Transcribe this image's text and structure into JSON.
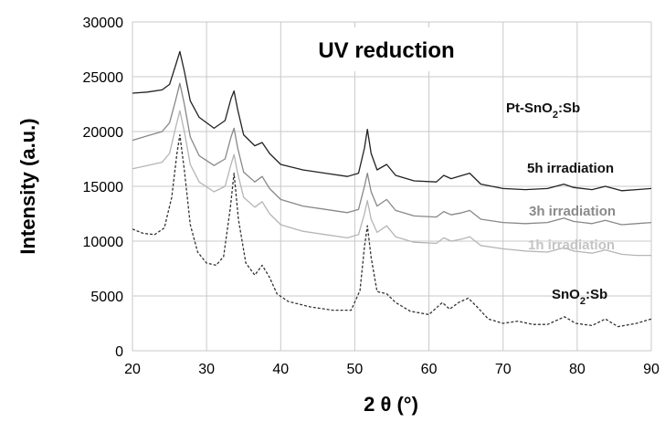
{
  "chart_data": {
    "type": "line",
    "title": "UV reduction",
    "xlabel": "2 θ (°)",
    "ylabel": "Intensity (a.u.)",
    "xlim": [
      20,
      90
    ],
    "ylim": [
      0,
      30000
    ],
    "xticks": [
      20,
      30,
      40,
      50,
      60,
      70,
      80,
      90
    ],
    "yticks": [
      0,
      5000,
      10000,
      15000,
      20000,
      25000,
      30000
    ],
    "grid": true,
    "series": [
      {
        "name": "Pt-SnO2:Sb",
        "label_parts": [
          "Pt-SnO",
          "2",
          ":Sb"
        ],
        "color": "#222222",
        "dash": "solid",
        "points": [
          [
            20,
            23500
          ],
          [
            22,
            23600
          ],
          [
            24,
            23800
          ],
          [
            25,
            24300
          ],
          [
            25.8,
            26000
          ],
          [
            26.4,
            27300
          ],
          [
            27,
            25500
          ],
          [
            27.8,
            22800
          ],
          [
            29,
            21300
          ],
          [
            31,
            20300
          ],
          [
            32.5,
            21000
          ],
          [
            33.3,
            23000
          ],
          [
            33.7,
            23700
          ],
          [
            34.2,
            22000
          ],
          [
            35,
            19700
          ],
          [
            36.5,
            18700
          ],
          [
            37.5,
            19000
          ],
          [
            38.5,
            18000
          ],
          [
            40,
            17000
          ],
          [
            43,
            16500
          ],
          [
            46,
            16200
          ],
          [
            49,
            15900
          ],
          [
            50.5,
            16200
          ],
          [
            51.3,
            18500
          ],
          [
            51.7,
            20200
          ],
          [
            52.2,
            18000
          ],
          [
            53,
            16500
          ],
          [
            54.3,
            17000
          ],
          [
            55.5,
            16000
          ],
          [
            58,
            15500
          ],
          [
            61,
            15400
          ],
          [
            62,
            16000
          ],
          [
            63,
            15700
          ],
          [
            64.5,
            16000
          ],
          [
            65.5,
            16200
          ],
          [
            67,
            15200
          ],
          [
            70,
            14800
          ],
          [
            73,
            14700
          ],
          [
            76,
            14800
          ],
          [
            78.2,
            15200
          ],
          [
            79.5,
            14900
          ],
          [
            82,
            14700
          ],
          [
            83.8,
            15000
          ],
          [
            86,
            14600
          ],
          [
            88,
            14700
          ],
          [
            90,
            14800
          ]
        ]
      },
      {
        "name": "5h irradiation",
        "label_parts": [
          "5h irradiation"
        ],
        "color": "#888888",
        "dash": "solid",
        "points": [
          [
            20,
            19200
          ],
          [
            22,
            19600
          ],
          [
            24,
            20000
          ],
          [
            25,
            20800
          ],
          [
            25.8,
            22800
          ],
          [
            26.4,
            24400
          ],
          [
            27,
            22500
          ],
          [
            27.8,
            19500
          ],
          [
            29,
            17800
          ],
          [
            31,
            16900
          ],
          [
            32.5,
            17500
          ],
          [
            33.3,
            19500
          ],
          [
            33.7,
            20300
          ],
          [
            34.2,
            18500
          ],
          [
            35,
            16300
          ],
          [
            36.5,
            15400
          ],
          [
            37.5,
            15900
          ],
          [
            38.5,
            14800
          ],
          [
            40,
            13800
          ],
          [
            43,
            13200
          ],
          [
            46,
            12900
          ],
          [
            49,
            12600
          ],
          [
            50.5,
            12900
          ],
          [
            51.3,
            15000
          ],
          [
            51.7,
            16200
          ],
          [
            52.2,
            14500
          ],
          [
            53,
            13200
          ],
          [
            54.3,
            13800
          ],
          [
            55.5,
            12800
          ],
          [
            58,
            12300
          ],
          [
            61,
            12200
          ],
          [
            62,
            12700
          ],
          [
            63,
            12400
          ],
          [
            64.5,
            12600
          ],
          [
            65.5,
            12800
          ],
          [
            67,
            12000
          ],
          [
            70,
            11700
          ],
          [
            73,
            11600
          ],
          [
            76,
            11700
          ],
          [
            78.2,
            12100
          ],
          [
            79.5,
            11800
          ],
          [
            82,
            11600
          ],
          [
            83.8,
            11900
          ],
          [
            86,
            11500
          ],
          [
            88,
            11600
          ],
          [
            90,
            11700
          ]
        ]
      },
      {
        "name": "3h irradiation",
        "label_parts": [
          "3h irradiation"
        ],
        "color": "#b5b5b5",
        "dash": "solid",
        "points": [
          [
            20,
            16600
          ],
          [
            22,
            16900
          ],
          [
            24,
            17200
          ],
          [
            25,
            18000
          ],
          [
            25.8,
            20300
          ],
          [
            26.4,
            21900
          ],
          [
            27,
            20000
          ],
          [
            27.8,
            17000
          ],
          [
            29,
            15400
          ],
          [
            31,
            14500
          ],
          [
            32.5,
            15000
          ],
          [
            33.3,
            17000
          ],
          [
            33.7,
            17900
          ],
          [
            34.2,
            16200
          ],
          [
            35,
            14000
          ],
          [
            36.5,
            13100
          ],
          [
            37.5,
            13600
          ],
          [
            38.5,
            12500
          ],
          [
            40,
            11500
          ],
          [
            43,
            10900
          ],
          [
            46,
            10600
          ],
          [
            49,
            10300
          ],
          [
            50.5,
            10600
          ],
          [
            51.3,
            12500
          ],
          [
            51.7,
            13700
          ],
          [
            52.2,
            12000
          ],
          [
            53,
            10800
          ],
          [
            54.3,
            11400
          ],
          [
            55.5,
            10400
          ],
          [
            58,
            9900
          ],
          [
            61,
            9800
          ],
          [
            62,
            10300
          ],
          [
            63,
            10000
          ],
          [
            64.5,
            10200
          ],
          [
            65.5,
            10400
          ],
          [
            67,
            9600
          ],
          [
            70,
            9300
          ],
          [
            73,
            9100
          ],
          [
            76,
            9000
          ],
          [
            78.2,
            9400
          ],
          [
            79.5,
            9100
          ],
          [
            82,
            8900
          ],
          [
            83.8,
            9200
          ],
          [
            86,
            8800
          ],
          [
            88,
            8700
          ],
          [
            90,
            8700
          ]
        ]
      },
      {
        "name": "SnO2:Sb",
        "label_parts": [
          "SnO",
          "2",
          ":Sb"
        ],
        "color": "#333333",
        "dash": "dashed",
        "points": [
          [
            20,
            11100
          ],
          [
            21.5,
            10700
          ],
          [
            23,
            10600
          ],
          [
            24.3,
            11200
          ],
          [
            25.3,
            14000
          ],
          [
            26,
            18000
          ],
          [
            26.4,
            19700
          ],
          [
            27,
            16500
          ],
          [
            27.8,
            11500
          ],
          [
            28.8,
            9000
          ],
          [
            30,
            8000
          ],
          [
            31.3,
            7800
          ],
          [
            32.3,
            8600
          ],
          [
            33.2,
            13000
          ],
          [
            33.7,
            16200
          ],
          [
            34.3,
            12000
          ],
          [
            35.3,
            8000
          ],
          [
            36.5,
            6900
          ],
          [
            37.5,
            7800
          ],
          [
            38.5,
            6700
          ],
          [
            39.5,
            5200
          ],
          [
            41,
            4500
          ],
          [
            44,
            4000
          ],
          [
            47,
            3700
          ],
          [
            49.5,
            3700
          ],
          [
            50.7,
            5500
          ],
          [
            51.3,
            9500
          ],
          [
            51.7,
            11400
          ],
          [
            52.2,
            8500
          ],
          [
            53,
            5400
          ],
          [
            54.3,
            5200
          ],
          [
            55.5,
            4400
          ],
          [
            57.5,
            3600
          ],
          [
            60,
            3300
          ],
          [
            61.8,
            4400
          ],
          [
            62.8,
            3800
          ],
          [
            64,
            4400
          ],
          [
            65.3,
            4800
          ],
          [
            66.5,
            4000
          ],
          [
            68,
            2900
          ],
          [
            70,
            2500
          ],
          [
            72,
            2700
          ],
          [
            74,
            2400
          ],
          [
            76,
            2400
          ],
          [
            78.3,
            3100
          ],
          [
            79.8,
            2500
          ],
          [
            82,
            2300
          ],
          [
            83.8,
            2900
          ],
          [
            85.5,
            2200
          ],
          [
            88,
            2500
          ],
          [
            90,
            2900
          ]
        ]
      }
    ],
    "series_label_texts": [
      "1h irradiation"
    ]
  }
}
